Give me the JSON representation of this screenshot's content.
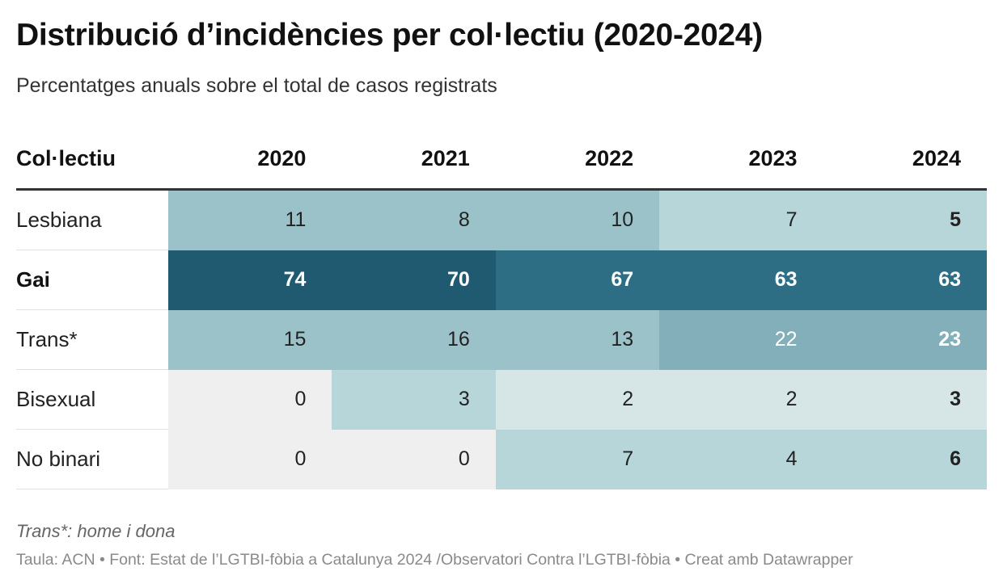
{
  "title": "Distribució d’incidències per col·lectiu (2020-2024)",
  "subtitle": "Percentatges anuals sobre el total de casos registrats",
  "note": "Trans*: home i dona",
  "footer": "Taula: ACN • Font: Estat de l’LGTBI-fòbia a Catalunya 2024 /Observatori Contra l’LGTBI-fòbia • Creat amb Datawrapper",
  "chart_data": {
    "type": "table",
    "row_header": "Col·lectiu",
    "columns": [
      "2020",
      "2021",
      "2022",
      "2023",
      "2024"
    ],
    "rows": [
      {
        "label": "Lesbiana",
        "values": [
          11,
          8,
          10,
          7,
          5
        ],
        "bold": false,
        "colors": [
          "#9bc2c9",
          "#9bc2c9",
          "#9bc2c9",
          "#b6d6d9",
          "#b6d6d9"
        ],
        "text_colors": [
          "#222222",
          "#222222",
          "#222222",
          "#222222",
          "#222222"
        ],
        "bold_cols": [
          4
        ]
      },
      {
        "label": "Gai",
        "values": [
          74,
          70,
          67,
          63,
          63
        ],
        "bold": true,
        "colors": [
          "#1f5a70",
          "#1f5a70",
          "#2e6e85",
          "#2e6e85",
          "#2e6e85"
        ],
        "text_colors": [
          "#ffffff",
          "#ffffff",
          "#ffffff",
          "#ffffff",
          "#ffffff"
        ],
        "bold_cols": [
          0,
          1,
          2,
          3,
          4
        ]
      },
      {
        "label": "Trans*",
        "values": [
          15,
          16,
          13,
          22,
          23
        ],
        "bold": false,
        "colors": [
          "#9bc2c9",
          "#9bc2c9",
          "#9bc2c9",
          "#83afbb",
          "#83afbb"
        ],
        "text_colors": [
          "#222222",
          "#222222",
          "#222222",
          "#ffffff",
          "#ffffff"
        ],
        "bold_cols": [
          4
        ]
      },
      {
        "label": "Bisexual",
        "values": [
          0,
          3,
          2,
          2,
          3
        ],
        "bold": false,
        "colors": [
          "#efefef",
          "#b6d6d9",
          "#d6e6e6",
          "#d6e6e6",
          "#d6e6e6"
        ],
        "text_colors": [
          "#222222",
          "#222222",
          "#222222",
          "#222222",
          "#222222"
        ],
        "bold_cols": [
          4
        ]
      },
      {
        "label": "No binari",
        "values": [
          0,
          0,
          7,
          4,
          6
        ],
        "bold": false,
        "colors": [
          "#efefef",
          "#efefef",
          "#b6d6d9",
          "#b6d6d9",
          "#b6d6d9"
        ],
        "text_colors": [
          "#222222",
          "#222222",
          "#222222",
          "#222222",
          "#222222"
        ],
        "bold_cols": [
          4
        ]
      }
    ]
  }
}
